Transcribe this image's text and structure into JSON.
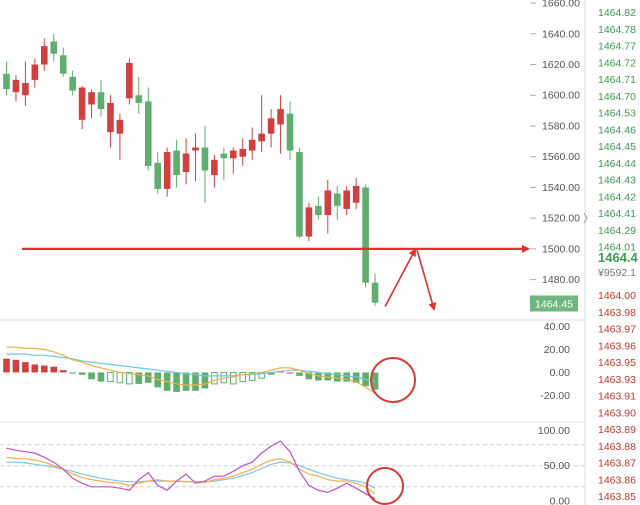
{
  "colors": {
    "up": "#d04040",
    "down": "#5fae6e",
    "trendline": "#e03030",
    "circle": "#d83a3a",
    "macd_dif": "#e8b24a",
    "macd_dea": "#72c4e6",
    "macd_k": "#f0b04a",
    "kdj_d": "#7cc7e8",
    "kdj_j": "#c04fc9",
    "bid": "#3e9a4f",
    "ask": "#c0392b",
    "price_tag_bg": "#6fb77e",
    "grid": "#cfcfcf"
  },
  "chart_data": [
    {
      "type": "candlestick",
      "name": "price",
      "ylim": [
        1455,
        1662
      ],
      "yticks": [
        "1660.00",
        "1640.00",
        "1620.00",
        "1600.00",
        "1580.00",
        "1560.00",
        "1540.00",
        "1520.00",
        "1500.00",
        "1480.00"
      ],
      "last_price_label": "1464.45",
      "horizontal_line": 1500,
      "ohlc": [
        [
          1614,
          1622,
          1600,
          1604
        ],
        [
          1602,
          1613,
          1596,
          1610
        ],
        [
          1600,
          1622,
          1593,
          1608
        ],
        [
          1610,
          1624,
          1605,
          1620
        ],
        [
          1620,
          1637,
          1616,
          1632
        ],
        [
          1635,
          1640,
          1622,
          1627
        ],
        [
          1626,
          1631,
          1612,
          1614
        ],
        [
          1612,
          1616,
          1600,
          1603
        ],
        [
          1584,
          1606,
          1578,
          1605
        ],
        [
          1594,
          1604,
          1585,
          1602
        ],
        [
          1602,
          1610,
          1586,
          1591
        ],
        [
          1576,
          1600,
          1566,
          1595
        ],
        [
          1575,
          1588,
          1558,
          1584
        ],
        [
          1598,
          1624,
          1594,
          1621
        ],
        [
          1600,
          1612,
          1588,
          1595
        ],
        [
          1596,
          1605,
          1551,
          1554
        ],
        [
          1556,
          1563,
          1536,
          1539
        ],
        [
          1539,
          1566,
          1534,
          1563
        ],
        [
          1564,
          1571,
          1540,
          1548
        ],
        [
          1550,
          1572,
          1542,
          1562
        ],
        [
          1564,
          1575,
          1544,
          1566
        ],
        [
          1566,
          1580,
          1530,
          1551
        ],
        [
          1548,
          1561,
          1540,
          1558
        ],
        [
          1562,
          1566,
          1545,
          1559
        ],
        [
          1559,
          1566,
          1549,
          1564
        ],
        [
          1560,
          1572,
          1554,
          1565
        ],
        [
          1564,
          1579,
          1558,
          1571
        ],
        [
          1570,
          1600,
          1563,
          1575
        ],
        [
          1575,
          1591,
          1566,
          1585
        ],
        [
          1581,
          1600,
          1562,
          1591
        ],
        [
          1588,
          1596,
          1558,
          1564
        ],
        [
          1563,
          1566,
          1507,
          1508
        ],
        [
          1508,
          1530,
          1505,
          1527
        ],
        [
          1528,
          1534,
          1519,
          1522
        ],
        [
          1522,
          1545,
          1510,
          1538
        ],
        [
          1536,
          1541,
          1519,
          1528
        ],
        [
          1526,
          1541,
          1522,
          1538
        ],
        [
          1530,
          1546,
          1526,
          1541
        ],
        [
          1540,
          1542,
          1475,
          1478
        ],
        [
          1478,
          1484,
          1463,
          1465
        ]
      ]
    },
    {
      "type": "bar+line",
      "name": "macd",
      "ylim": [
        -31,
        44
      ],
      "yticks": [
        "40.00",
        "20.00",
        "0.00",
        "-20.00"
      ],
      "histogram": [
        12,
        11,
        9,
        7,
        6,
        5,
        2,
        -1,
        -2,
        -6,
        -8,
        -8,
        -9,
        -10,
        -10,
        -9,
        -13,
        -16,
        -17,
        -16,
        -16,
        -14,
        -10,
        -9,
        -10,
        -8,
        -7,
        -5,
        -2,
        1,
        0,
        -3,
        -6,
        -7,
        -7,
        -8,
        -8,
        -9,
        -12,
        -15
      ],
      "dif": [
        22,
        22,
        21,
        21,
        20,
        18,
        15,
        11,
        9,
        6,
        4,
        2,
        0,
        -1,
        -2,
        -3,
        -6,
        -8,
        -10,
        -11,
        -11,
        -10,
        -7,
        -5,
        -4,
        -2,
        -1,
        0,
        2,
        4,
        4,
        2,
        -1,
        -3,
        -4,
        -5,
        -6,
        -8,
        -13,
        -18
      ],
      "dea": [
        16,
        16,
        16,
        15,
        15,
        14,
        13,
        12,
        10,
        9,
        8,
        7,
        6,
        5,
        4,
        3,
        2,
        1,
        0,
        -1,
        -2,
        -3,
        -3,
        -3,
        -3,
        -2,
        -2,
        -1,
        0,
        1,
        2,
        2,
        1,
        0,
        -1,
        -2,
        -3,
        -4,
        -6,
        -8
      ]
    },
    {
      "type": "line",
      "name": "kdj",
      "ylim": [
        -6,
        108
      ],
      "yticks": [
        "100.00",
        "50.00",
        "0.00"
      ],
      "k": [
        62,
        60,
        60,
        58,
        55,
        50,
        45,
        38,
        33,
        30,
        28,
        26,
        25,
        22,
        25,
        28,
        30,
        28,
        28,
        27,
        27,
        26,
        30,
        32,
        35,
        40,
        45,
        52,
        58,
        60,
        55,
        45,
        38,
        35,
        30,
        28,
        28,
        25,
        20,
        10
      ],
      "d": [
        55,
        55,
        54,
        52,
        50,
        48,
        45,
        42,
        38,
        35,
        32,
        30,
        28,
        27,
        27,
        28,
        28,
        28,
        28,
        27,
        27,
        27,
        28,
        30,
        32,
        36,
        40,
        46,
        52,
        55,
        54,
        50,
        45,
        40,
        36,
        32,
        30,
        28,
        25,
        18
      ],
      "j": [
        75,
        72,
        70,
        68,
        62,
        55,
        45,
        32,
        25,
        20,
        20,
        20,
        18,
        15,
        30,
        40,
        22,
        15,
        28,
        38,
        25,
        28,
        35,
        35,
        42,
        50,
        55,
        68,
        78,
        85,
        70,
        42,
        22,
        15,
        12,
        18,
        25,
        18,
        10,
        3
      ]
    }
  ],
  "order_book": {
    "bids": [
      "1464.82",
      "1464.78",
      "1464.77",
      "1464.72",
      "1464.71",
      "1464.70",
      "1464.53",
      "1464.46",
      "1464.45",
      "1464.44",
      "1464.43",
      "1464.42",
      "1464.41",
      "1464.29",
      "1464.01"
    ],
    "big_price": "1464.4",
    "volume": "¥9592.1",
    "asks": [
      "1464.00",
      "1463.98",
      "1463.97",
      "1463.96",
      "1463.95",
      "1463.93",
      "1463.91",
      "1463.90",
      "1463.89",
      "1463.88",
      "1463.87",
      "1463.86",
      "1463.85"
    ]
  }
}
